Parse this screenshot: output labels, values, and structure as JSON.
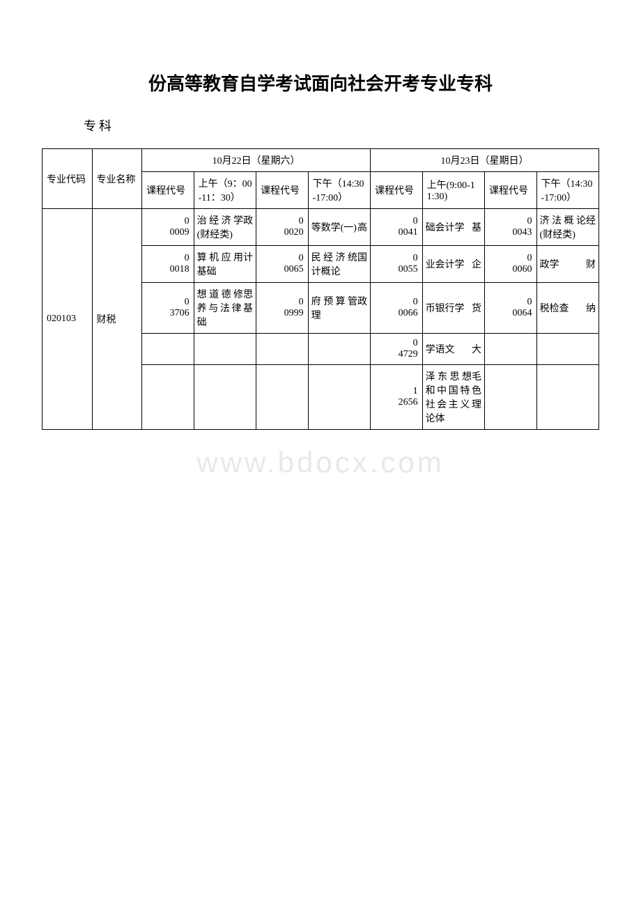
{
  "title": "份高等教育自学考试面向社会开考专业专科",
  "subtitle": "专科",
  "watermark": "www.bdocx.com",
  "colors": {
    "background": "#ffffff",
    "border": "#000000",
    "text": "#000000",
    "watermark": "#e8e8e8"
  },
  "fonts": {
    "title_size": 26,
    "subtitle_size": 18,
    "cell_size": 14
  },
  "header": {
    "day1": "10月22日（星期六）",
    "day2": "10月23日（星期日）",
    "major_code": "专业代码",
    "major_name": "专业名称",
    "course_code": "课程代号",
    "am1": "上午（9：00-11：30）",
    "pm1": "下午（14:30-17:00）",
    "am2": "上午(9:00-11:30)",
    "pm2": "下午（14:30-17:00）"
  },
  "major": {
    "code": "020103",
    "name": "财税"
  },
  "rows": [
    {
      "c1_code": "00009",
      "c1_name": "政治经济学(财经类)",
      "c2_code": "00020",
      "c2_name": "高等数学(一)",
      "c3_code": "00041",
      "c3_name": "基础会计学",
      "c4_code": "00043",
      "c4_name": "经济法概论(财经类)"
    },
    {
      "c1_code": "00018",
      "c1_name": "计算机应用基础",
      "c2_code": "00065",
      "c2_name": "国民经济统计概论",
      "c3_code": "00055",
      "c3_name": "企业会计学",
      "c4_code": "00060",
      "c4_name": "财政学"
    },
    {
      "c1_code": "03706",
      "c1_name": "思想道德修养与法律基础",
      "c2_code": "00999",
      "c2_name": "政府预算管理",
      "c3_code": "00066",
      "c3_name": "货币银行学",
      "c4_code": "00064",
      "c4_name": "纳税检查"
    },
    {
      "c1_code": "",
      "c1_name": "",
      "c2_code": "",
      "c2_name": "",
      "c3_code": "04729",
      "c3_name": "大学语文",
      "c4_code": "",
      "c4_name": ""
    },
    {
      "c1_code": "",
      "c1_name": "",
      "c2_code": "",
      "c2_name": "",
      "c3_code": "12656",
      "c3_name": "毛泽东思想和中国特色社会主义理论体",
      "c4_code": "",
      "c4_name": ""
    }
  ]
}
